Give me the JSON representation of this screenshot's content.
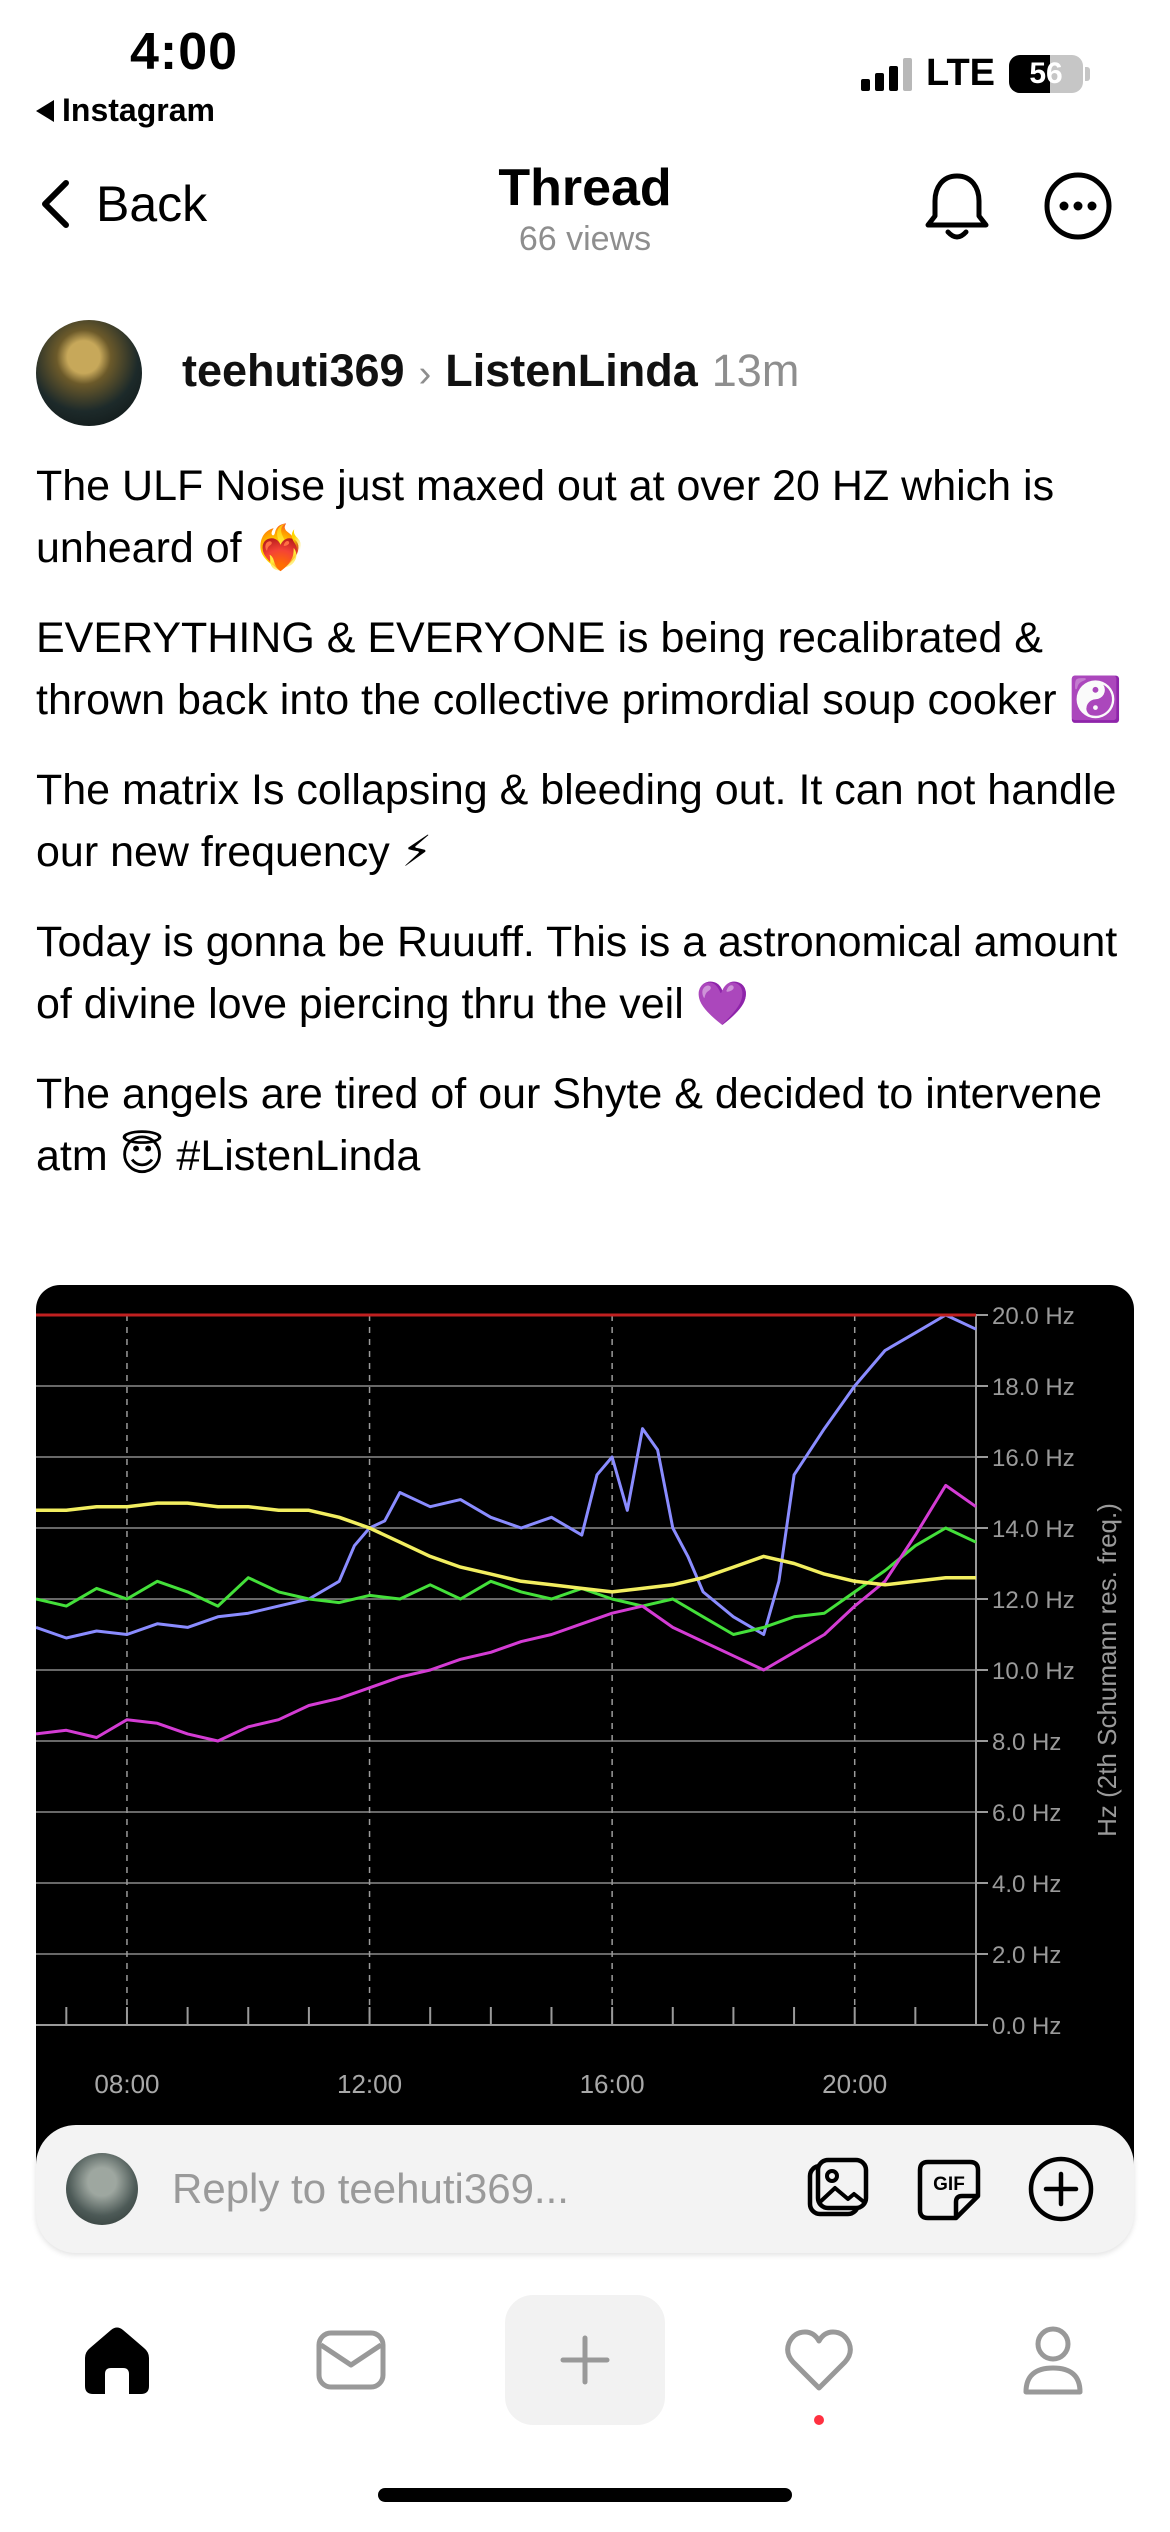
{
  "status_bar": {
    "time": "4:00",
    "back_app": "Instagram",
    "network": "LTE",
    "battery": "56",
    "battery_fraction": 0.56,
    "signal_bars_active": 3
  },
  "header": {
    "back_label": "Back",
    "title": "Thread",
    "views": "66 views",
    "icons": [
      "bell-icon",
      "more-icon"
    ]
  },
  "post": {
    "author": "teehuti369",
    "reply_to": "ListenLinda",
    "time_ago": "13m",
    "paragraphs": [
      "The ULF Noise just maxed out at over 20 HZ which is unheard of ❤️‍🔥",
      "EVERYTHING & EVERYONE is being recalibrated & thrown back into the collective primordial soup cooker ☯️",
      "The matrix Is collapsing & bleeding out. It can not handle our new frequency ⚡",
      "Today is gonna be Ruuuff. This is a astronomical amount of divine love piercing thru the veil 💜",
      "The angels are tired of our Shyte & decided to intervene atm 😇 #ListenLinda"
    ]
  },
  "chart_data": {
    "type": "line",
    "ylabel": "Hz (2th Schumann res. freq.)",
    "y_ticks": [
      "0.0 Hz",
      "2.0 Hz",
      "4.0 Hz",
      "6.0 Hz",
      "8.0 Hz",
      "10.0 Hz",
      "12.0 Hz",
      "14.0 Hz",
      "16.0 Hz",
      "18.0 Hz",
      "20.0 Hz"
    ],
    "x_ticks": [
      "08:00",
      "12:00",
      "16:00",
      "20:00"
    ],
    "ylim": [
      0,
      20
    ],
    "xlim": [
      6.5,
      22
    ],
    "grid": true,
    "colors": {
      "blue": "#8a8cff",
      "green": "#44e03a",
      "magenta": "#d43cd4",
      "yellow": "#f2ee60",
      "red": "#c02020"
    },
    "series": [
      {
        "color": "blue",
        "x": [
          6.5,
          7,
          7.5,
          8,
          8.5,
          9,
          9.5,
          10,
          10.5,
          11,
          11.5,
          11.75,
          12,
          12.25,
          12.5,
          13,
          13.5,
          14,
          14.5,
          15,
          15.5,
          15.75,
          16,
          16.25,
          16.5,
          16.75,
          17,
          17.25,
          17.5,
          18,
          18.5,
          18.75,
          19,
          19.5,
          20,
          20.5,
          21,
          21.5,
          22
        ],
        "y": [
          11.2,
          10.9,
          11.1,
          11.0,
          11.3,
          11.2,
          11.5,
          11.6,
          11.8,
          12.0,
          12.5,
          13.5,
          14.0,
          14.2,
          15.0,
          14.6,
          14.8,
          14.3,
          14.0,
          14.3,
          13.8,
          15.5,
          16.0,
          14.5,
          16.8,
          16.2,
          14.0,
          13.2,
          12.2,
          11.5,
          11.0,
          12.5,
          15.5,
          16.8,
          18.0,
          19.0,
          19.5,
          20.0,
          19.6
        ]
      },
      {
        "color": "green",
        "x": [
          6.5,
          7,
          7.5,
          8,
          8.5,
          9,
          9.5,
          10,
          10.5,
          11,
          11.5,
          12,
          12.5,
          13,
          13.5,
          14,
          14.5,
          15,
          15.5,
          16,
          16.5,
          17,
          17.5,
          18,
          18.5,
          19,
          19.5,
          20,
          20.5,
          21,
          21.5,
          22
        ],
        "y": [
          12.0,
          11.8,
          12.3,
          12.0,
          12.5,
          12.2,
          11.8,
          12.6,
          12.2,
          12.0,
          11.9,
          12.1,
          12.0,
          12.4,
          12.0,
          12.5,
          12.2,
          12.0,
          12.3,
          12.0,
          11.8,
          12.0,
          11.5,
          11.0,
          11.2,
          11.5,
          11.6,
          12.2,
          12.8,
          13.5,
          14.0,
          13.6
        ]
      },
      {
        "color": "magenta",
        "x": [
          6.5,
          7,
          7.5,
          8,
          8.5,
          9,
          9.5,
          10,
          10.5,
          11,
          11.5,
          12,
          12.5,
          13,
          13.5,
          14,
          14.5,
          15,
          15.5,
          16,
          16.5,
          17,
          17.5,
          18,
          18.5,
          19,
          19.5,
          20,
          20.5,
          21,
          21.5,
          22
        ],
        "y": [
          8.2,
          8.3,
          8.1,
          8.6,
          8.5,
          8.2,
          8.0,
          8.4,
          8.6,
          9.0,
          9.2,
          9.5,
          9.8,
          10.0,
          10.3,
          10.5,
          10.8,
          11.0,
          11.3,
          11.6,
          11.8,
          11.2,
          10.8,
          10.4,
          10.0,
          10.5,
          11.0,
          11.8,
          12.5,
          13.8,
          15.2,
          14.6
        ]
      },
      {
        "color": "yellow",
        "x": [
          6.5,
          7,
          7.5,
          8,
          8.5,
          9,
          9.5,
          10,
          10.5,
          11,
          11.5,
          12,
          12.5,
          13,
          13.5,
          14,
          14.5,
          15,
          15.5,
          16,
          16.5,
          17,
          17.5,
          18,
          18.5,
          19,
          19.5,
          20,
          20.5,
          21,
          21.5,
          22
        ],
        "y": [
          14.5,
          14.5,
          14.6,
          14.6,
          14.7,
          14.7,
          14.6,
          14.6,
          14.5,
          14.5,
          14.3,
          14.0,
          13.6,
          13.2,
          12.9,
          12.7,
          12.5,
          12.4,
          12.3,
          12.2,
          12.3,
          12.4,
          12.6,
          12.9,
          13.2,
          13.0,
          12.7,
          12.5,
          12.4,
          12.5,
          12.6,
          12.6
        ]
      },
      {
        "color": "red",
        "x": [
          6.5,
          22
        ],
        "y": [
          20.0,
          20.0
        ]
      }
    ]
  },
  "reply_bar": {
    "placeholder": "Reply to teehuti369...",
    "gif_label": "GIF",
    "icons": [
      "image-icon",
      "gif-icon",
      "add-circle-icon"
    ]
  },
  "tab_bar": {
    "tabs": [
      "home-icon",
      "messages-icon",
      "create-icon",
      "activity-icon",
      "profile-icon"
    ],
    "active": "home-icon",
    "activity_badge": true
  }
}
